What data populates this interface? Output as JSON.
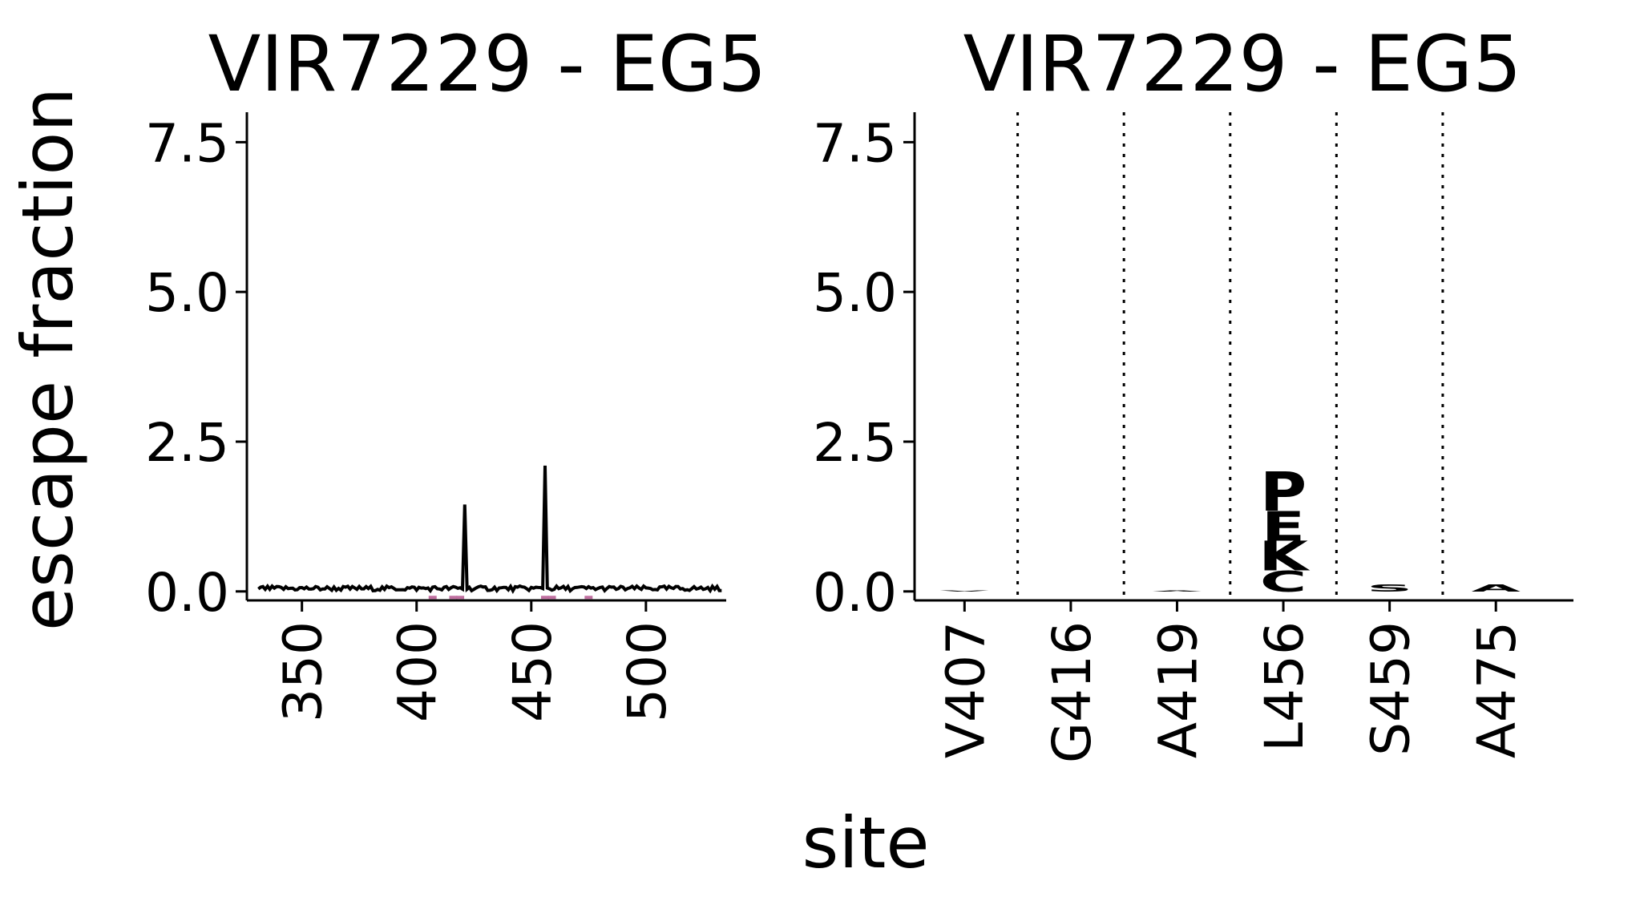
{
  "figure": {
    "ylabel": "escape fraction",
    "xlabel": "site"
  },
  "chart_data": [
    {
      "type": "line",
      "title": "VIR7229 - EG5",
      "xlabel": "",
      "ylabel": "escape fraction",
      "xlim": [
        326,
        535
      ],
      "ylim": [
        -0.15,
        8.0
      ],
      "xticks": [
        350,
        400,
        450,
        500
      ],
      "yticks": [
        0.0,
        2.5,
        5.0,
        7.5
      ],
      "ytick_labels": [
        "0.0",
        "2.5",
        "5.0",
        "7.5"
      ],
      "series": [
        {
          "color": "#000000",
          "baseline": 0.05,
          "baseline_range": [
            331,
            533
          ],
          "peaks": [
            {
              "x": 421,
              "y": 1.45
            },
            {
              "x": 456,
              "y": 2.1
            }
          ]
        }
      ],
      "highlight_ticks": {
        "color": "#c06fa0",
        "x": [
          407,
          416,
          419,
          456,
          459,
          475
        ]
      }
    },
    {
      "type": "logo",
      "title": "VIR7229 - EG5",
      "xlabel": "",
      "ylabel": "",
      "ylim": [
        -0.15,
        8.0
      ],
      "yticks": [
        0.0,
        2.5,
        5.0,
        7.5
      ],
      "ytick_labels": [
        "0.0",
        "2.5",
        "5.0",
        "7.5"
      ],
      "categories": [
        "V407",
        "G416",
        "A419",
        "L456",
        "S459",
        "A475"
      ],
      "grid": "dotted vertical separators between sites",
      "stacks": [
        {
          "site": "V407",
          "letters": [
            {
              "letter": "V",
              "value": 0.02,
              "color": "#ff99cc"
            }
          ]
        },
        {
          "site": "G416",
          "letters": []
        },
        {
          "site": "A419",
          "letters": [
            {
              "letter": "A",
              "value": 0.01,
              "color": "#ff99cc"
            }
          ]
        },
        {
          "site": "L456",
          "letters": [
            {
              "letter": "C",
              "value": 0.35,
              "color": "#e8309b"
            },
            {
              "letter": "K",
              "value": 0.5,
              "color": "#e8309b"
            },
            {
              "letter": "E",
              "value": 0.5,
              "color": "#e8309b"
            },
            {
              "letter": "P",
              "value": 0.65,
              "color": "#e8309b"
            }
          ]
        },
        {
          "site": "S459",
          "letters": [
            {
              "letter": "S",
              "value": 0.12,
              "color": "#f59ac8"
            }
          ]
        },
        {
          "site": "A475",
          "letters": [
            {
              "letter": "A",
              "value": 0.12,
              "color": "#f59ac8"
            }
          ]
        }
      ]
    }
  ]
}
